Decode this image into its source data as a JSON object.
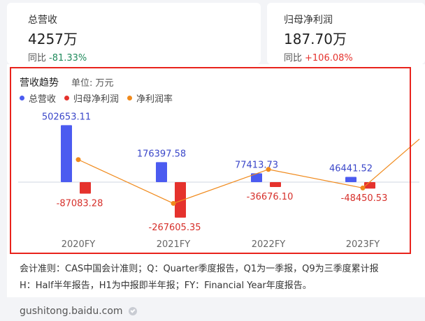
{
  "kpis": [
    {
      "label": "总营收",
      "value": "4257万",
      "yoy_label": "同比",
      "yoy_value": "-81.33%"
    },
    {
      "label": "归母净利润",
      "value": "187.70万",
      "yoy_label": "同比",
      "yoy_value": "+106.08%"
    }
  ],
  "chart_header": {
    "title": "营收趋势",
    "unit": "单位: 万元"
  },
  "legend": [
    {
      "label": "总营收",
      "color": "#4b5bf0"
    },
    {
      "label": "归母净利润",
      "color": "#e5322d"
    },
    {
      "label": "净利润率",
      "color": "#f08a1c"
    }
  ],
  "chart_data": {
    "type": "bar",
    "categories": [
      "2020FY",
      "2021FY",
      "2022FY",
      "2023FY"
    ],
    "series": [
      {
        "name": "总营收",
        "type": "bar",
        "color": "#4b5bf0",
        "values": [
          502653.11,
          176397.58,
          77413.73,
          46441.52
        ],
        "labels": [
          "502653.11",
          "176397.58",
          "77413.73",
          "46441.52"
        ]
      },
      {
        "name": "归母净利润",
        "type": "bar",
        "color": "#e5322d",
        "values": [
          -87083.28,
          -267605.35,
          -36676.1,
          -48450.53
        ],
        "labels": [
          "-87083.28",
          "-267605.35",
          "-36676.10",
          "-48450.53"
        ]
      },
      {
        "name": "净利润率",
        "type": "line",
        "color": "#f08a1c",
        "values": [
          -17.3,
          -151.7,
          -47.4,
          -104.3
        ]
      }
    ],
    "ylim": [
      -300000,
      560000
    ],
    "line_ylim": [
      -170,
      40
    ]
  },
  "notes": {
    "line1": "会计准则：CAS中国会计准则；Q：Quarter季度报告，Q1为一季报，Q9为三季度累计报",
    "line2": "H：Half半年报告，H1为中报即半年报；FY：Financial Year年度报告。"
  },
  "footer": {
    "site": "gushitong.baidu.com"
  }
}
